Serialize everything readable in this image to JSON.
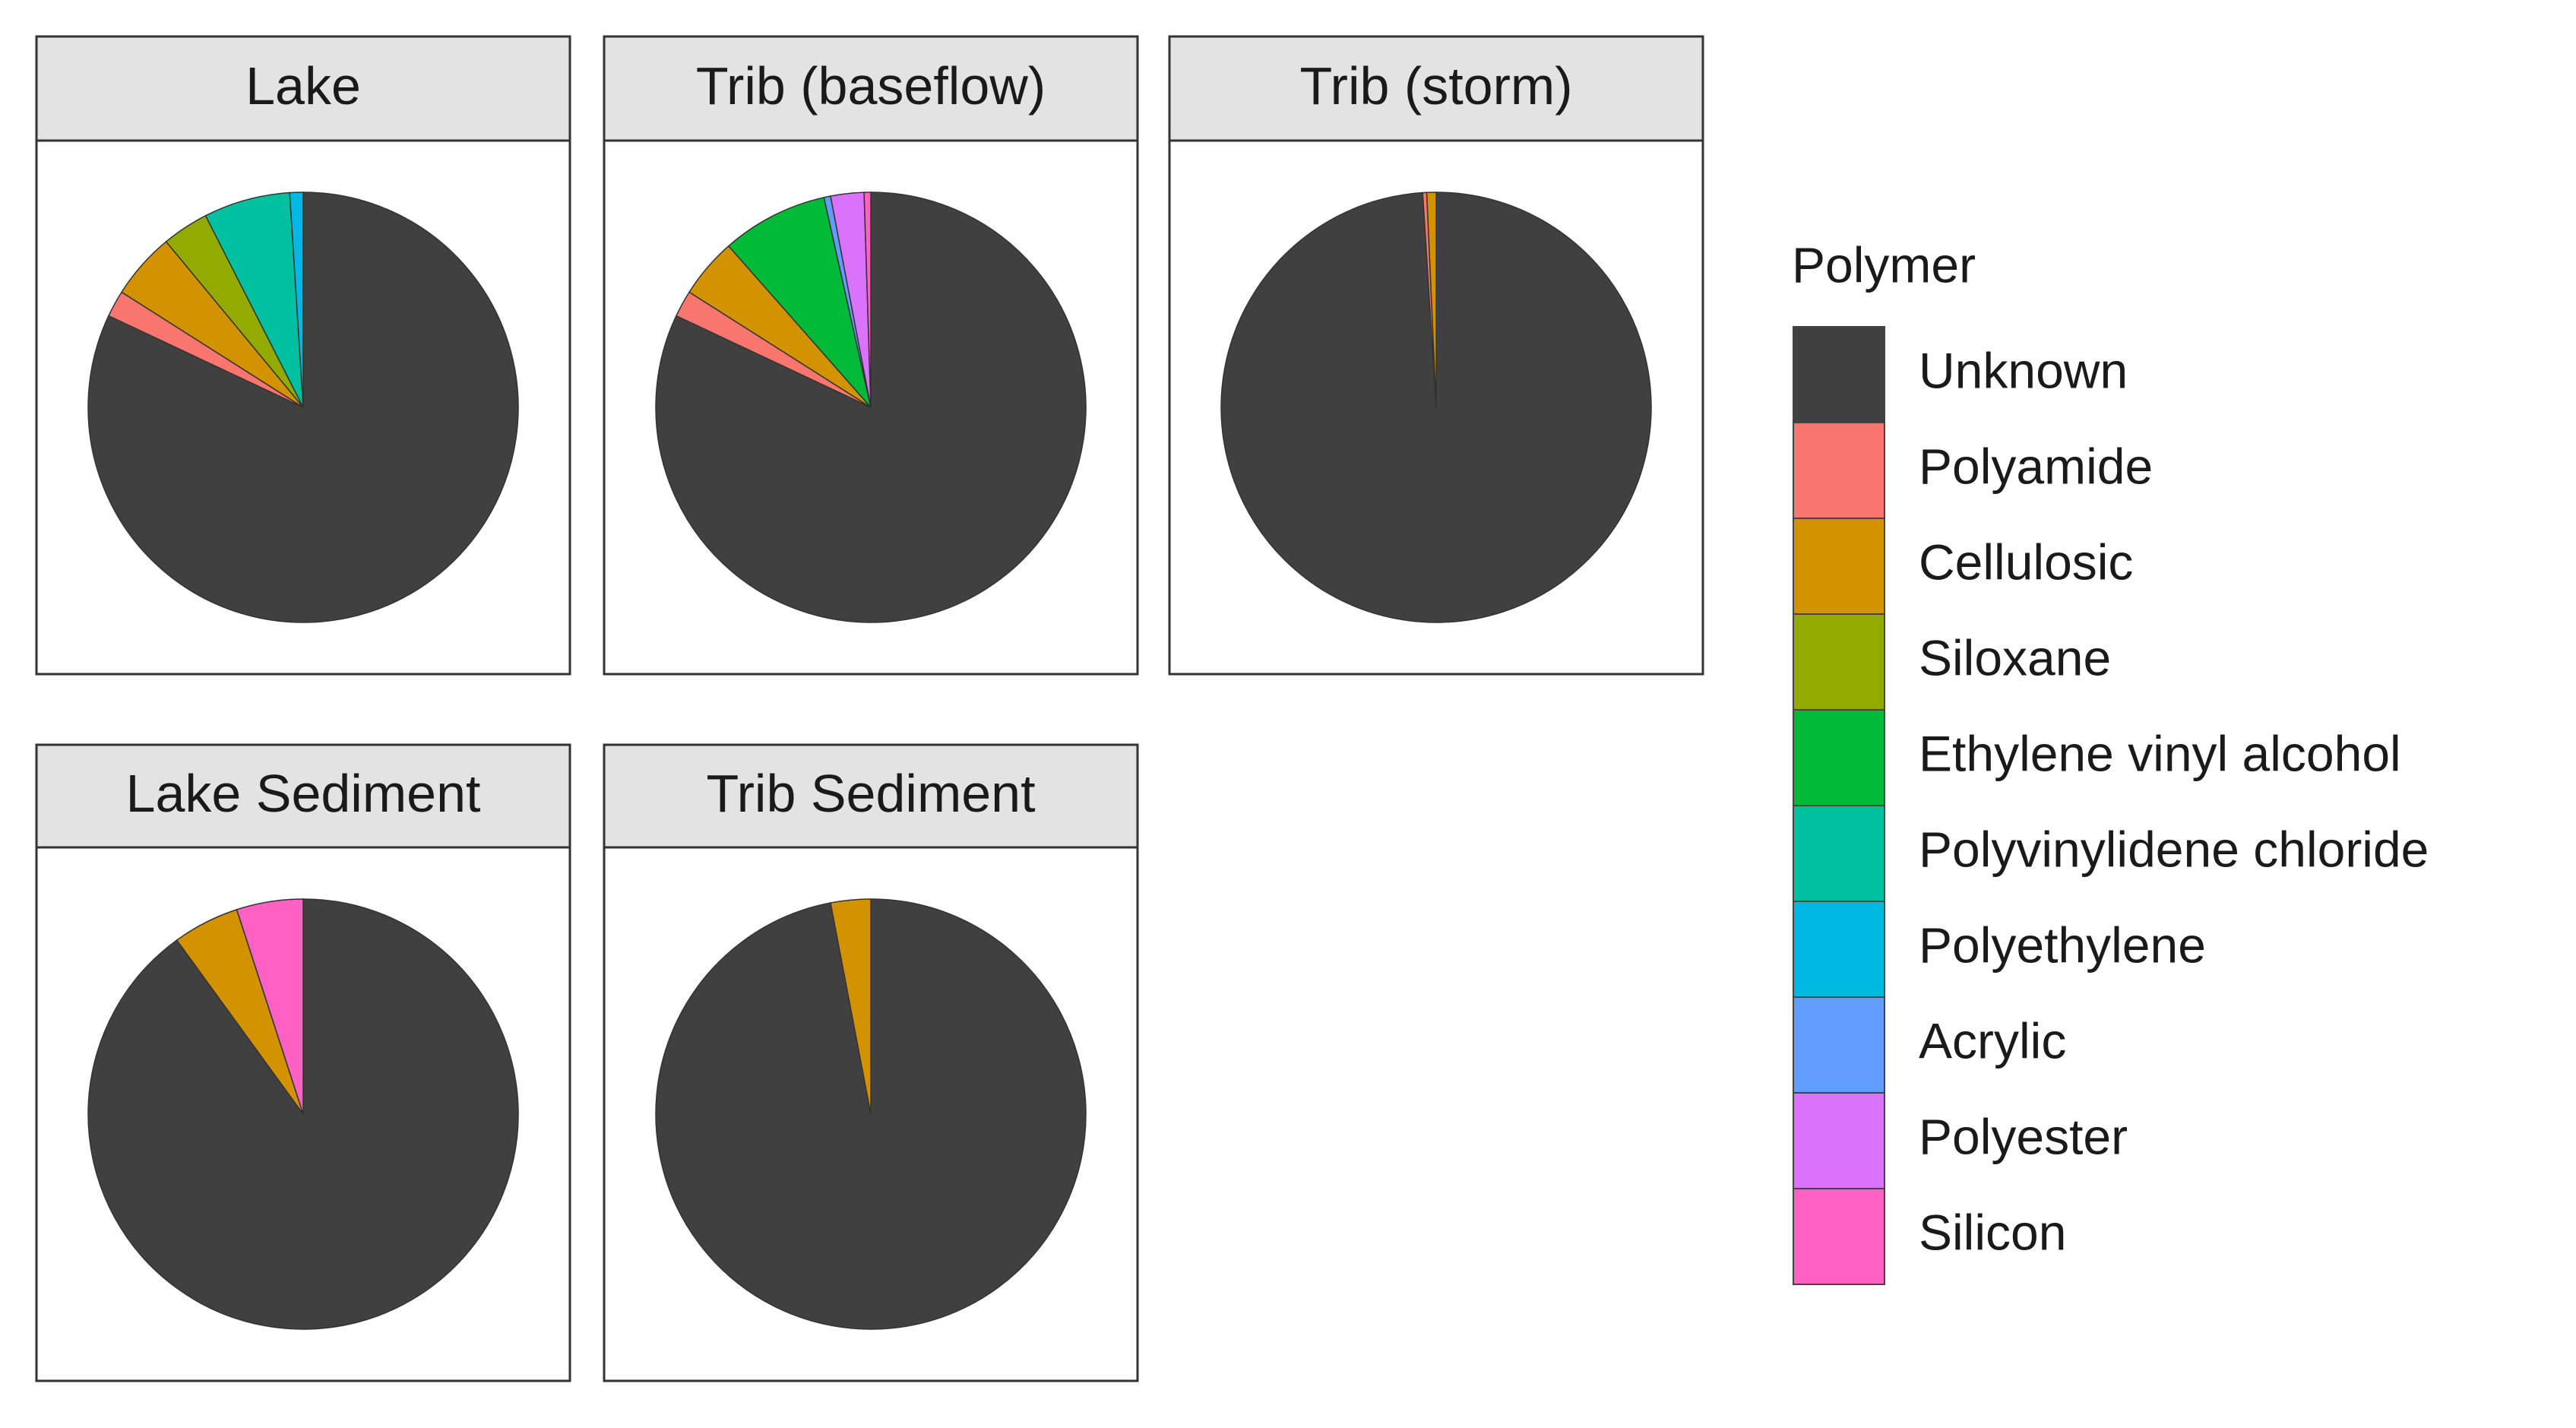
{
  "chart_data": {
    "type": "pie",
    "legend_title": "Polymer",
    "categories": [
      "Unknown",
      "Polyamide",
      "Cellulosic",
      "Siloxane",
      "Ethylene vinyl alcohol",
      "Polyvinylidene chloride",
      "Polyethylene",
      "Acrylic",
      "Polyester",
      "Silicon"
    ],
    "colors": [
      "#404040",
      "#f8766d",
      "#d39200",
      "#93aa00",
      "#00ba38",
      "#00c19f",
      "#00b9e3",
      "#619cff",
      "#db72fb",
      "#ff61c3"
    ],
    "panels": [
      {
        "title": "Lake",
        "values": [
          82,
          2,
          5,
          3.5,
          0,
          6.5,
          1,
          0,
          0,
          0
        ]
      },
      {
        "title": "Trib (baseflow)",
        "values": [
          82,
          2,
          4.5,
          0,
          8,
          0,
          0,
          0.5,
          2.5,
          0.5
        ]
      },
      {
        "title": "Trib (storm)",
        "values": [
          99,
          0.3,
          0.7,
          0,
          0,
          0,
          0,
          0,
          0,
          0
        ]
      },
      {
        "title": "Lake Sediment",
        "values": [
          90,
          0,
          5,
          0,
          0,
          0,
          0,
          0,
          0,
          5
        ]
      },
      {
        "title": "Trib Sediment",
        "values": [
          97,
          0,
          3,
          0,
          0,
          0,
          0,
          0,
          0,
          0
        ]
      }
    ]
  }
}
